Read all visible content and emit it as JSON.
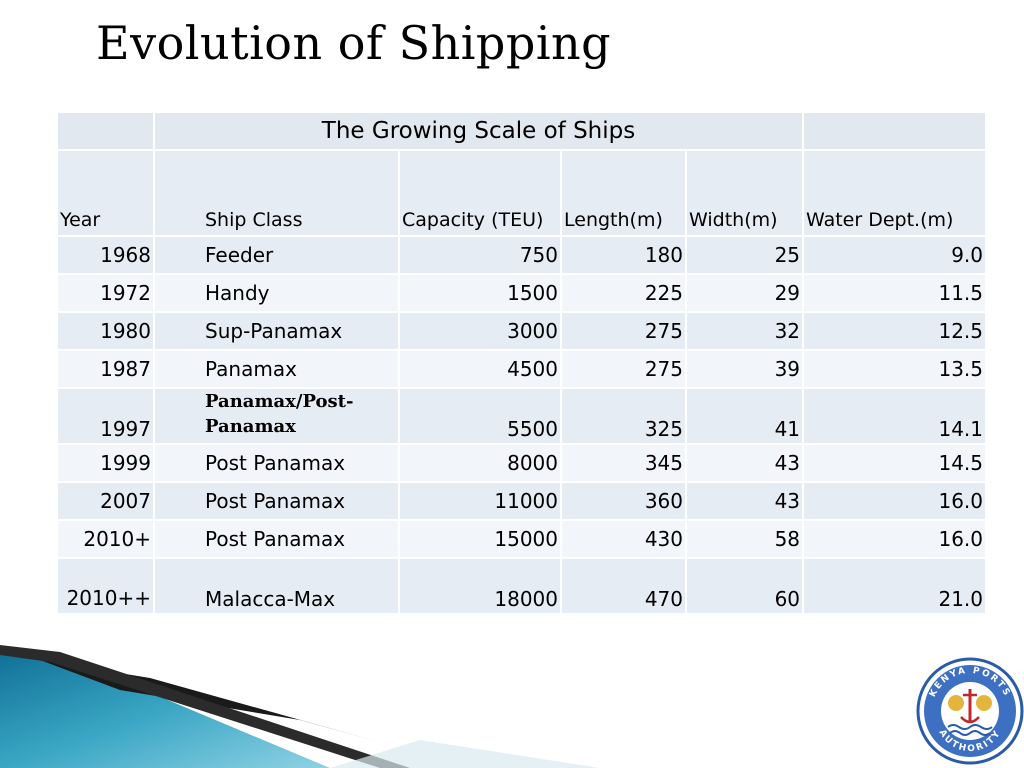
{
  "slide": {
    "title": "Evolution of Shipping"
  },
  "table": {
    "caption": "The Growing Scale of Ships",
    "columns": [
      "Year",
      "Ship Class",
      "Capacity (TEU)",
      "Length(m)",
      "Width(m)",
      "Water Dept.(m)"
    ],
    "rows": [
      {
        "year": "1968",
        "class": "Feeder",
        "capacity": "750",
        "length": "180",
        "width": "25",
        "depth": "9.0"
      },
      {
        "year": "1972",
        "class": "Handy",
        "capacity": "1500",
        "length": "225",
        "width": "29",
        "depth": "11.5"
      },
      {
        "year": "1980",
        "class": "Sup-Panamax",
        "capacity": "3000",
        "length": "275",
        "width": "32",
        "depth": "12.5"
      },
      {
        "year": "1987",
        "class": "Panamax",
        "capacity": "4500",
        "length": "275",
        "width": "39",
        "depth": "13.5"
      },
      {
        "year": "1997",
        "class": "Panamax/Post-Panamax",
        "capacity": "5500",
        "length": "325",
        "width": "41",
        "depth": "14.1"
      },
      {
        "year": "1999",
        "class": "Post Panamax",
        "capacity": "8000",
        "length": "345",
        "width": "43",
        "depth": "14.5"
      },
      {
        "year": "2007",
        "class": "Post Panamax",
        "capacity": "11000",
        "length": "360",
        "width": "43",
        "depth": "16.0"
      },
      {
        "year": "2010+",
        "class": "Post Panamax",
        "capacity": "15000",
        "length": "430",
        "width": "58",
        "depth": "16.0"
      },
      {
        "year": "2010++",
        "class": "Malacca-Max",
        "capacity": "18000",
        "length": "470",
        "width": "60",
        "depth": "21.0"
      }
    ]
  },
  "logo": {
    "text": "KENYA PORTS AUTHORITY",
    "icon": "kenya-ports-authority-emblem"
  },
  "colors": {
    "header_fill": "#e6ecf3",
    "row_fill_alt": "#f2f5f9",
    "decor_teal": "#3aa6c4",
    "decor_dark": "#1a1a1a",
    "logo_blue": "#2a5aa8"
  }
}
